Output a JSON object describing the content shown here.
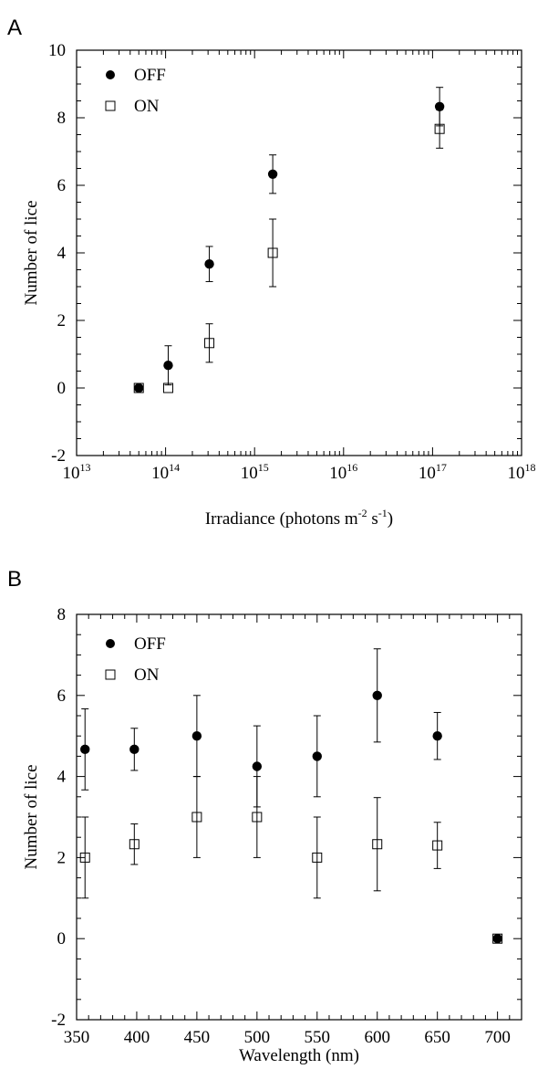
{
  "chart_data": [
    {
      "panel": "A",
      "type": "scatter",
      "xscale": "log",
      "xlim": [
        10000000000000.0,
        1e+18
      ],
      "ylim": [
        -2,
        10
      ],
      "ylabel": "Number of lice",
      "xlabel": {
        "prefix": "Irradiance (photons m",
        "exp1": "-2",
        "mid": " s",
        "exp2": "-1",
        "suffix": ")"
      },
      "xticks": [
        {
          "value": 10000000000000.0,
          "base": "10",
          "exp": "13"
        },
        {
          "value": 100000000000000.0,
          "base": "10",
          "exp": "14"
        },
        {
          "value": 1000000000000000.0,
          "base": "10",
          "exp": "15"
        },
        {
          "value": 1e+16,
          "base": "10",
          "exp": "16"
        },
        {
          "value": 1e+17,
          "base": "10",
          "exp": "17"
        },
        {
          "value": 1e+18,
          "base": "10",
          "exp": "18"
        }
      ],
      "yticks": [
        "-2",
        "0",
        "2",
        "4",
        "6",
        "8",
        "10"
      ],
      "legend": {
        "placement": "top-left"
      },
      "series": [
        {
          "name": "OFF",
          "marker": "filled-circle",
          "points": [
            {
              "x": 50000000000000.0,
              "y": 0,
              "err": 0
            },
            {
              "x": 107000000000000.0,
              "y": 0.67,
              "err": 0.58
            },
            {
              "x": 310000000000000.0,
              "y": 3.67,
              "err": 0.52
            },
            {
              "x": 1600000000000000.0,
              "y": 6.33,
              "err": 0.57
            },
            {
              "x": 1.2e+17,
              "y": 8.33,
              "err": 0.57
            }
          ]
        },
        {
          "name": "ON",
          "marker": "open-square",
          "points": [
            {
              "x": 50000000000000.0,
              "y": 0,
              "err": 0
            },
            {
              "x": 107000000000000.0,
              "y": 0,
              "err": 0
            },
            {
              "x": 310000000000000.0,
              "y": 1.33,
              "err": 0.57
            },
            {
              "x": 1600000000000000.0,
              "y": 4.0,
              "err": 1.0
            },
            {
              "x": 1.2e+17,
              "y": 7.67,
              "err": 0.57
            }
          ]
        }
      ]
    },
    {
      "panel": "B",
      "type": "scatter",
      "xscale": "linear",
      "xlim": [
        350,
        720
      ],
      "ylim": [
        -2,
        8
      ],
      "ylabel": "Number of lice",
      "xlabel": "Wavelength (nm)",
      "xticks": [
        "350",
        "400",
        "450",
        "500",
        "550",
        "600",
        "650",
        "700"
      ],
      "yticks": [
        "-2",
        "0",
        "2",
        "4",
        "6",
        "8"
      ],
      "legend": {
        "placement": "top-left"
      },
      "series": [
        {
          "name": "OFF",
          "marker": "filled-circle",
          "points": [
            {
              "x": 357,
              "y": 4.67,
              "err": 1.0
            },
            {
              "x": 398,
              "y": 4.67,
              "err": 0.52
            },
            {
              "x": 450,
              "y": 5.0,
              "err": 1.0
            },
            {
              "x": 500,
              "y": 4.25,
              "err": 1.0
            },
            {
              "x": 550,
              "y": 4.5,
              "err": 1.0
            },
            {
              "x": 600,
              "y": 6.0,
              "err": 1.15
            },
            {
              "x": 650,
              "y": 5.0,
              "err": 0.58
            },
            {
              "x": 700,
              "y": 0,
              "err": 0
            }
          ]
        },
        {
          "name": "ON",
          "marker": "open-square",
          "points": [
            {
              "x": 357,
              "y": 2.0,
              "err": 1.0
            },
            {
              "x": 398,
              "y": 2.33,
              "err": 0.5
            },
            {
              "x": 450,
              "y": 3.0,
              "err": 1.0
            },
            {
              "x": 500,
              "y": 3.0,
              "err": 1.0
            },
            {
              "x": 550,
              "y": 2.0,
              "err": 1.0
            },
            {
              "x": 600,
              "y": 2.33,
              "err": 1.15
            },
            {
              "x": 650,
              "y": 2.3,
              "err": 0.57
            },
            {
              "x": 700,
              "y": 0,
              "err": 0
            }
          ]
        }
      ]
    }
  ]
}
